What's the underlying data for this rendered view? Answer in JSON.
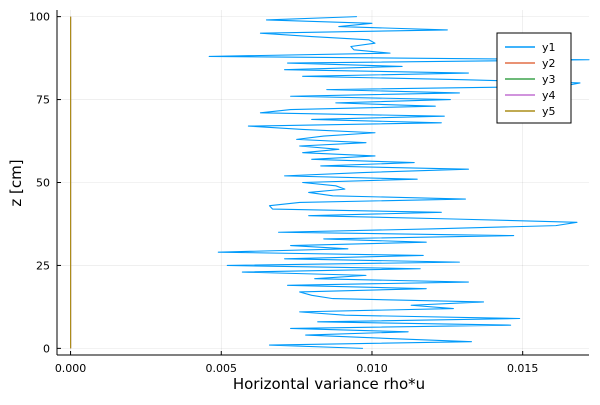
{
  "chart_data": {
    "type": "line",
    "title": "",
    "xlabel": "Horizontal variance rho*u",
    "ylabel": "z [cm]",
    "xlim": [
      -0.00045,
      0.0172
    ],
    "ylim": [
      -2,
      102
    ],
    "x_ticks": [
      0.0,
      0.005,
      0.01,
      0.015
    ],
    "x_tick_labels": [
      "0.000",
      "0.005",
      "0.010",
      "0.015"
    ],
    "y_ticks": [
      0,
      25,
      50,
      75,
      100
    ],
    "y_tick_labels": [
      "0",
      "25",
      "50",
      "75",
      "100"
    ],
    "grid": true,
    "legend": "top-right",
    "series": [
      {
        "name": "y1",
        "color": "#009AFA",
        "points": [
          [
            0.0097,
            0
          ],
          [
            0.0066,
            1
          ],
          [
            0.0133,
            2
          ],
          [
            0.0105,
            3
          ],
          [
            0.0078,
            4
          ],
          [
            0.0112,
            5
          ],
          [
            0.0073,
            6
          ],
          [
            0.0146,
            7
          ],
          [
            0.0082,
            8
          ],
          [
            0.0149,
            9
          ],
          [
            0.0091,
            10
          ],
          [
            0.0076,
            11
          ],
          [
            0.0127,
            12
          ],
          [
            0.0113,
            13
          ],
          [
            0.0137,
            14
          ],
          [
            0.0087,
            15
          ],
          [
            0.008,
            16
          ],
          [
            0.0076,
            17
          ],
          [
            0.0118,
            18
          ],
          [
            0.0072,
            19
          ],
          [
            0.0132,
            20
          ],
          [
            0.0081,
            21
          ],
          [
            0.0098,
            22
          ],
          [
            0.0057,
            23
          ],
          [
            0.0116,
            24
          ],
          [
            0.0052,
            25
          ],
          [
            0.0129,
            26
          ],
          [
            0.0071,
            27
          ],
          [
            0.0117,
            28
          ],
          [
            0.0049,
            29
          ],
          [
            0.0092,
            30
          ],
          [
            0.0073,
            31
          ],
          [
            0.0118,
            32
          ],
          [
            0.0084,
            33
          ],
          [
            0.0147,
            34
          ],
          [
            0.0069,
            35
          ],
          [
            0.0119,
            36
          ],
          [
            0.0161,
            37
          ],
          [
            0.0168,
            38
          ],
          [
            0.0127,
            39
          ],
          [
            0.0079,
            40
          ],
          [
            0.0123,
            41
          ],
          [
            0.0067,
            42
          ],
          [
            0.0066,
            43
          ],
          [
            0.0076,
            44
          ],
          [
            0.0131,
            45
          ],
          [
            0.0087,
            46
          ],
          [
            0.0079,
            47
          ],
          [
            0.0091,
            48
          ],
          [
            0.0088,
            49
          ],
          [
            0.0077,
            50
          ],
          [
            0.0115,
            51
          ],
          [
            0.0071,
            52
          ],
          [
            0.0097,
            53
          ],
          [
            0.0132,
            54
          ],
          [
            0.0083,
            55
          ],
          [
            0.0114,
            56
          ],
          [
            0.008,
            57
          ],
          [
            0.0101,
            58
          ],
          [
            0.0077,
            59
          ],
          [
            0.0089,
            60
          ],
          [
            0.0076,
            61
          ],
          [
            0.0098,
            62
          ],
          [
            0.0075,
            63
          ],
          [
            0.0084,
            64
          ],
          [
            0.0101,
            65
          ],
          [
            0.0077,
            66
          ],
          [
            0.0059,
            67
          ],
          [
            0.0123,
            68
          ],
          [
            0.008,
            69
          ],
          [
            0.0124,
            70
          ],
          [
            0.0063,
            71
          ],
          [
            0.0073,
            72
          ],
          [
            0.0121,
            73
          ],
          [
            0.0088,
            74
          ],
          [
            0.0126,
            75
          ],
          [
            0.0073,
            76
          ],
          [
            0.0129,
            77
          ],
          [
            0.0085,
            78
          ],
          [
            0.0163,
            79
          ],
          [
            0.0169,
            80
          ],
          [
            0.013,
            81
          ],
          [
            0.0077,
            82
          ],
          [
            0.0132,
            83
          ],
          [
            0.0071,
            84
          ],
          [
            0.011,
            85
          ],
          [
            0.0072,
            86
          ],
          [
            0.0172,
            87
          ],
          [
            0.0046,
            88
          ],
          [
            0.0106,
            89
          ],
          [
            0.0094,
            90
          ],
          [
            0.0093,
            91
          ],
          [
            0.0101,
            92
          ],
          [
            0.0099,
            93
          ],
          [
            0.008,
            94
          ],
          [
            0.0063,
            95
          ],
          [
            0.0125,
            96
          ],
          [
            0.0089,
            97
          ],
          [
            0.01,
            98
          ],
          [
            0.0065,
            99
          ],
          [
            0.0095,
            100
          ]
        ]
      },
      {
        "name": "y2",
        "color": "#E26F46",
        "points": [
          [
            0,
            0
          ],
          [
            0,
            100
          ]
        ]
      },
      {
        "name": "y3",
        "color": "#3DA44D",
        "points": [
          [
            0,
            0
          ],
          [
            0,
            100
          ]
        ]
      },
      {
        "name": "y4",
        "color": "#C271D2",
        "points": [
          [
            0,
            0
          ],
          [
            0,
            100
          ]
        ]
      },
      {
        "name": "y5",
        "color": "#AC8D18",
        "points": [
          [
            0,
            0
          ],
          [
            0,
            100
          ]
        ]
      }
    ]
  }
}
